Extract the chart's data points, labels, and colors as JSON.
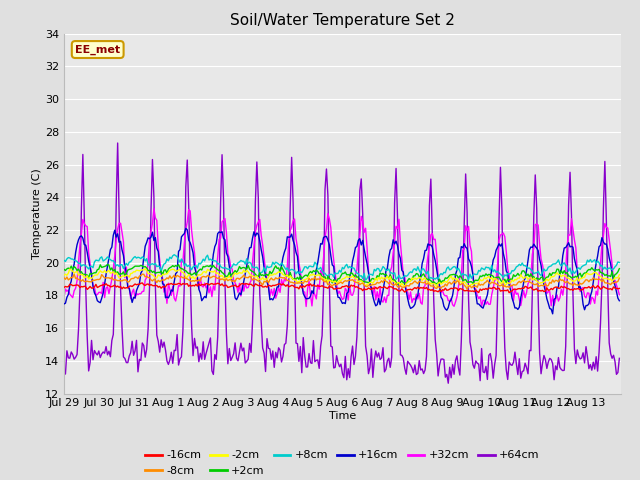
{
  "title": "Soil/Water Temperature Set 2",
  "xlabel": "Time",
  "ylabel": "Temperature (C)",
  "ylim": [
    12,
    34
  ],
  "yticks": [
    12,
    14,
    16,
    18,
    20,
    22,
    24,
    26,
    28,
    30,
    32,
    34
  ],
  "background_color": "#e0e0e0",
  "axes_bg_color": "#e8e8e8",
  "grid_color": "#ffffff",
  "series_order": [
    "-16cm",
    "-8cm",
    "-2cm",
    "+2cm",
    "+8cm",
    "+16cm",
    "+32cm",
    "+64cm"
  ],
  "colors": {
    "-16cm": "#ff0000",
    "-8cm": "#ff8c00",
    "-2cm": "#ffff00",
    "+2cm": "#00cc00",
    "+8cm": "#00cccc",
    "+16cm": "#0000cc",
    "+32cm": "#ff00ff",
    "+64cm": "#8800cc"
  },
  "watermark": "EE_met",
  "x_tick_labels": [
    "Jul 29",
    "Jul 30",
    "Jul 31",
    "Aug 1",
    "Aug 2",
    "Aug 3",
    "Aug 4",
    "Aug 5",
    "Aug 6",
    "Aug 7",
    "Aug 8",
    "Aug 9",
    "Aug 10",
    "Aug 11",
    "Aug 12",
    "Aug 13"
  ],
  "legend_row1": [
    "-16cm",
    "-8cm",
    "-2cm",
    "+2cm",
    "+8cm",
    "+16cm"
  ],
  "legend_row2": [
    "+32cm",
    "+64cm"
  ]
}
